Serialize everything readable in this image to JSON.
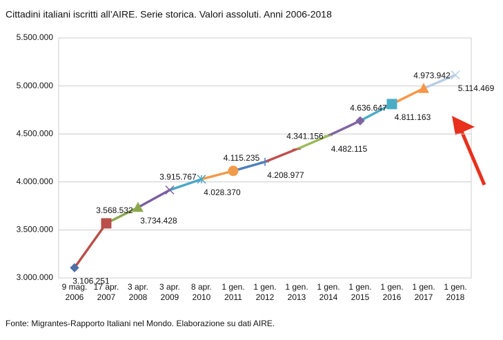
{
  "chart_data": {
    "type": "line",
    "title": "Cittadini italiani iscritti all’AIRE. Serie storica. Valori assoluti. Anni 2006-2018",
    "source": "Fonte: Migrantes-Rapporto Italiani nel Mondo. Elaborazione su dati AIRE.",
    "categories": [
      [
        "9 mag.",
        "2006"
      ],
      [
        "17 apr.",
        "2007"
      ],
      [
        "3 apr.",
        "2008"
      ],
      [
        "3 apr.",
        "2009"
      ],
      [
        "8 apr.",
        "2010"
      ],
      [
        "1 gen.",
        "2011"
      ],
      [
        "1 gen.",
        "2012"
      ],
      [
        "1 gen.",
        "2013"
      ],
      [
        "1 gen.",
        "2014"
      ],
      [
        "1 gen.",
        "2015"
      ],
      [
        "1 gen.",
        "2016"
      ],
      [
        "1 gen.",
        "2017"
      ],
      [
        "1 gen.",
        "2018"
      ]
    ],
    "values": [
      3106251,
      3568532,
      3734428,
      3915767,
      4028370,
      4115235,
      4208977,
      4341156,
      4482115,
      4636647,
      4811163,
      4973942,
      5114469
    ],
    "value_labels": [
      "3.106.251",
      "3.568.532",
      "3.734.428",
      "3.915.767",
      "4.028.370",
      "4.115.235",
      "4.208.977",
      "4.341.156",
      "4.482.115",
      "4.636.647",
      "4.811.163",
      "4.973.942",
      "5.114.469"
    ],
    "colors": [
      "#4f6fa8",
      "#b94f4a",
      "#8ca84e",
      "#7a5ea0",
      "#4aa6c4",
      "#f09a4a",
      "#4f7fbd",
      "#c0504d",
      "#9bbb59",
      "#8064a2",
      "#4bacc6",
      "#f79646",
      "#b9cde5"
    ],
    "markers": [
      "diamond",
      "square",
      "triangle",
      "x",
      "star",
      "circle",
      "plus",
      "dash",
      "dash",
      "diamond",
      "square",
      "triangle",
      "x"
    ],
    "ylim": [
      3000000,
      5500000
    ],
    "yticks": [
      {
        "value": 3000000,
        "label": "3.000.000"
      },
      {
        "value": 3500000,
        "label": "3.500.000"
      },
      {
        "value": 4000000,
        "label": "4.000.000"
      },
      {
        "value": 4500000,
        "label": "4.500.000"
      },
      {
        "value": 5000000,
        "label": "5.000.000"
      },
      {
        "value": 5500000,
        "label": "5.500.000"
      }
    ],
    "grid": true
  }
}
